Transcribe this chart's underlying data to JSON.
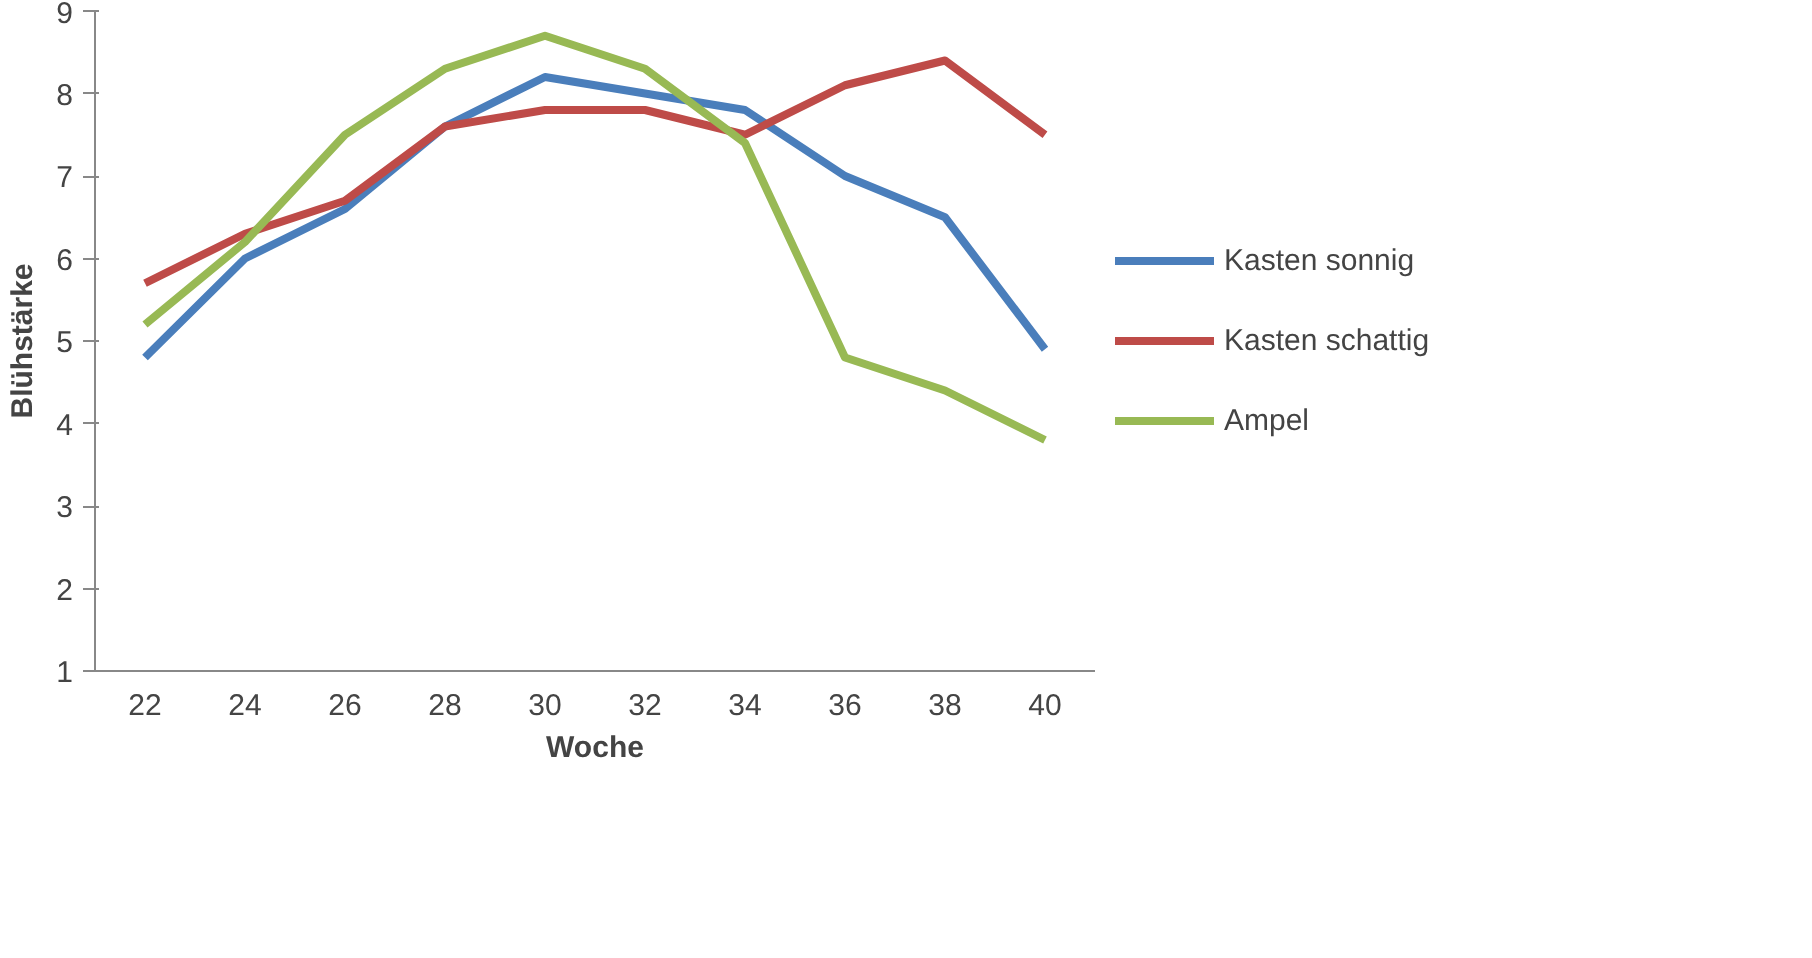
{
  "chart_data": {
    "type": "line",
    "xlabel": "Woche",
    "ylabel": "Blühstärke",
    "categories": [
      "22",
      "24",
      "26",
      "28",
      "30",
      "32",
      "34",
      "36",
      "38",
      "40"
    ],
    "series": [
      {
        "name": "Kasten sonnig",
        "color": "#4a7ebb",
        "values": [
          4.8,
          6.0,
          6.6,
          7.6,
          8.2,
          8.0,
          7.8,
          7.0,
          6.5,
          4.9
        ]
      },
      {
        "name": "Kasten schattig",
        "color": "#be4b48",
        "values": [
          5.7,
          6.3,
          6.7,
          7.6,
          7.8,
          7.8,
          7.5,
          8.1,
          8.4,
          7.5
        ]
      },
      {
        "name": "Ampel",
        "color": "#98b954",
        "values": [
          5.2,
          6.2,
          7.5,
          8.3,
          8.7,
          8.3,
          7.4,
          4.8,
          4.4,
          3.8
        ]
      }
    ],
    "ylim": [
      1,
      9
    ],
    "yticks": [
      1,
      2,
      3,
      4,
      5,
      6,
      7,
      8,
      9
    ],
    "grid": false,
    "legend": "right",
    "marker": "none",
    "line_style": "solid"
  }
}
